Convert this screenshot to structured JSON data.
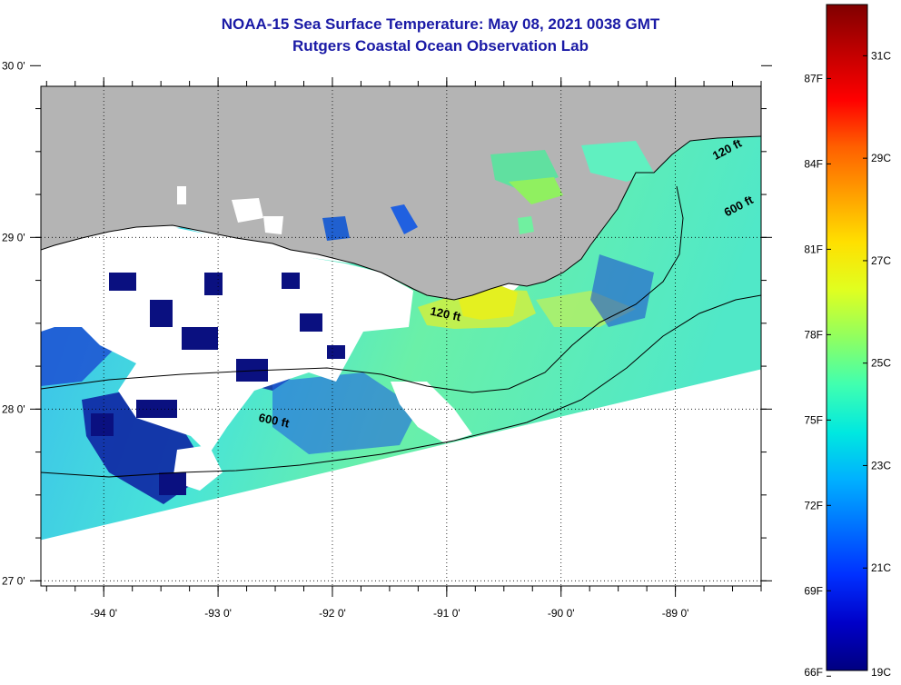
{
  "title": {
    "line1": "NOAA-15 Sea Surface Temperature:  May 08, 2021 0038 GMT",
    "line2": "Rutgers Coastal Ocean Observation Lab"
  },
  "map": {
    "lon_range": [
      -94.55,
      -88.25
    ],
    "lat_range": [
      26.97,
      29.88
    ],
    "lon_ticks": [
      {
        "value": -94,
        "label": "-94 0'"
      },
      {
        "value": -93,
        "label": "-93 0'"
      },
      {
        "value": -92,
        "label": "-92 0'"
      },
      {
        "value": -91,
        "label": "-91 0'"
      },
      {
        "value": -90,
        "label": "-90 0'"
      },
      {
        "value": -89,
        "label": "-89 0'"
      }
    ],
    "lat_ticks": [
      {
        "value": 30,
        "label": "30 0'"
      },
      {
        "value": 29,
        "label": "29 0'"
      },
      {
        "value": 28,
        "label": "28 0'"
      },
      {
        "value": 27,
        "label": "27 0'"
      }
    ],
    "isobath_labels": [
      {
        "text": "120 ft",
        "lon": -91.15,
        "lat": 28.55
      },
      {
        "text": "600 ft",
        "lon": -92.65,
        "lat": 27.93
      },
      {
        "text": "120 ft",
        "lon": -88.65,
        "lat": 29.45
      },
      {
        "text": "600 ft",
        "lon": -88.55,
        "lat": 29.12
      }
    ],
    "colors": {
      "land": "#b4b4b4",
      "cloud": "#ffffff",
      "isobath": "#000000",
      "title": "#1a1aa6"
    }
  },
  "colorbar": {
    "range_c": [
      19,
      32
    ],
    "celsius": [
      {
        "value": 31,
        "label": "31C"
      },
      {
        "value": 29,
        "label": "29C"
      },
      {
        "value": 27,
        "label": "27C"
      },
      {
        "value": 25,
        "label": "25C"
      },
      {
        "value": 23,
        "label": "23C"
      },
      {
        "value": 21,
        "label": "21C"
      },
      {
        "value": 19,
        "label": "19C"
      }
    ],
    "fahrenheit": [
      {
        "value": 87,
        "label": "87F"
      },
      {
        "value": 84,
        "label": "84F"
      },
      {
        "value": 81,
        "label": "81F"
      },
      {
        "value": 78,
        "label": "78F"
      },
      {
        "value": 75,
        "label": "75F"
      },
      {
        "value": 72,
        "label": "72F"
      },
      {
        "value": 69,
        "label": "69F"
      },
      {
        "value": 66,
        "label": "66F"
      }
    ],
    "gradient": [
      "#800000",
      "#c00000",
      "#ff0000",
      "#ff6000",
      "#ffa000",
      "#ffe000",
      "#e0ff20",
      "#90ff60",
      "#40ffb0",
      "#00e8e0",
      "#00b0ff",
      "#0070ff",
      "#0030ff",
      "#0000c8",
      "#000080"
    ]
  }
}
